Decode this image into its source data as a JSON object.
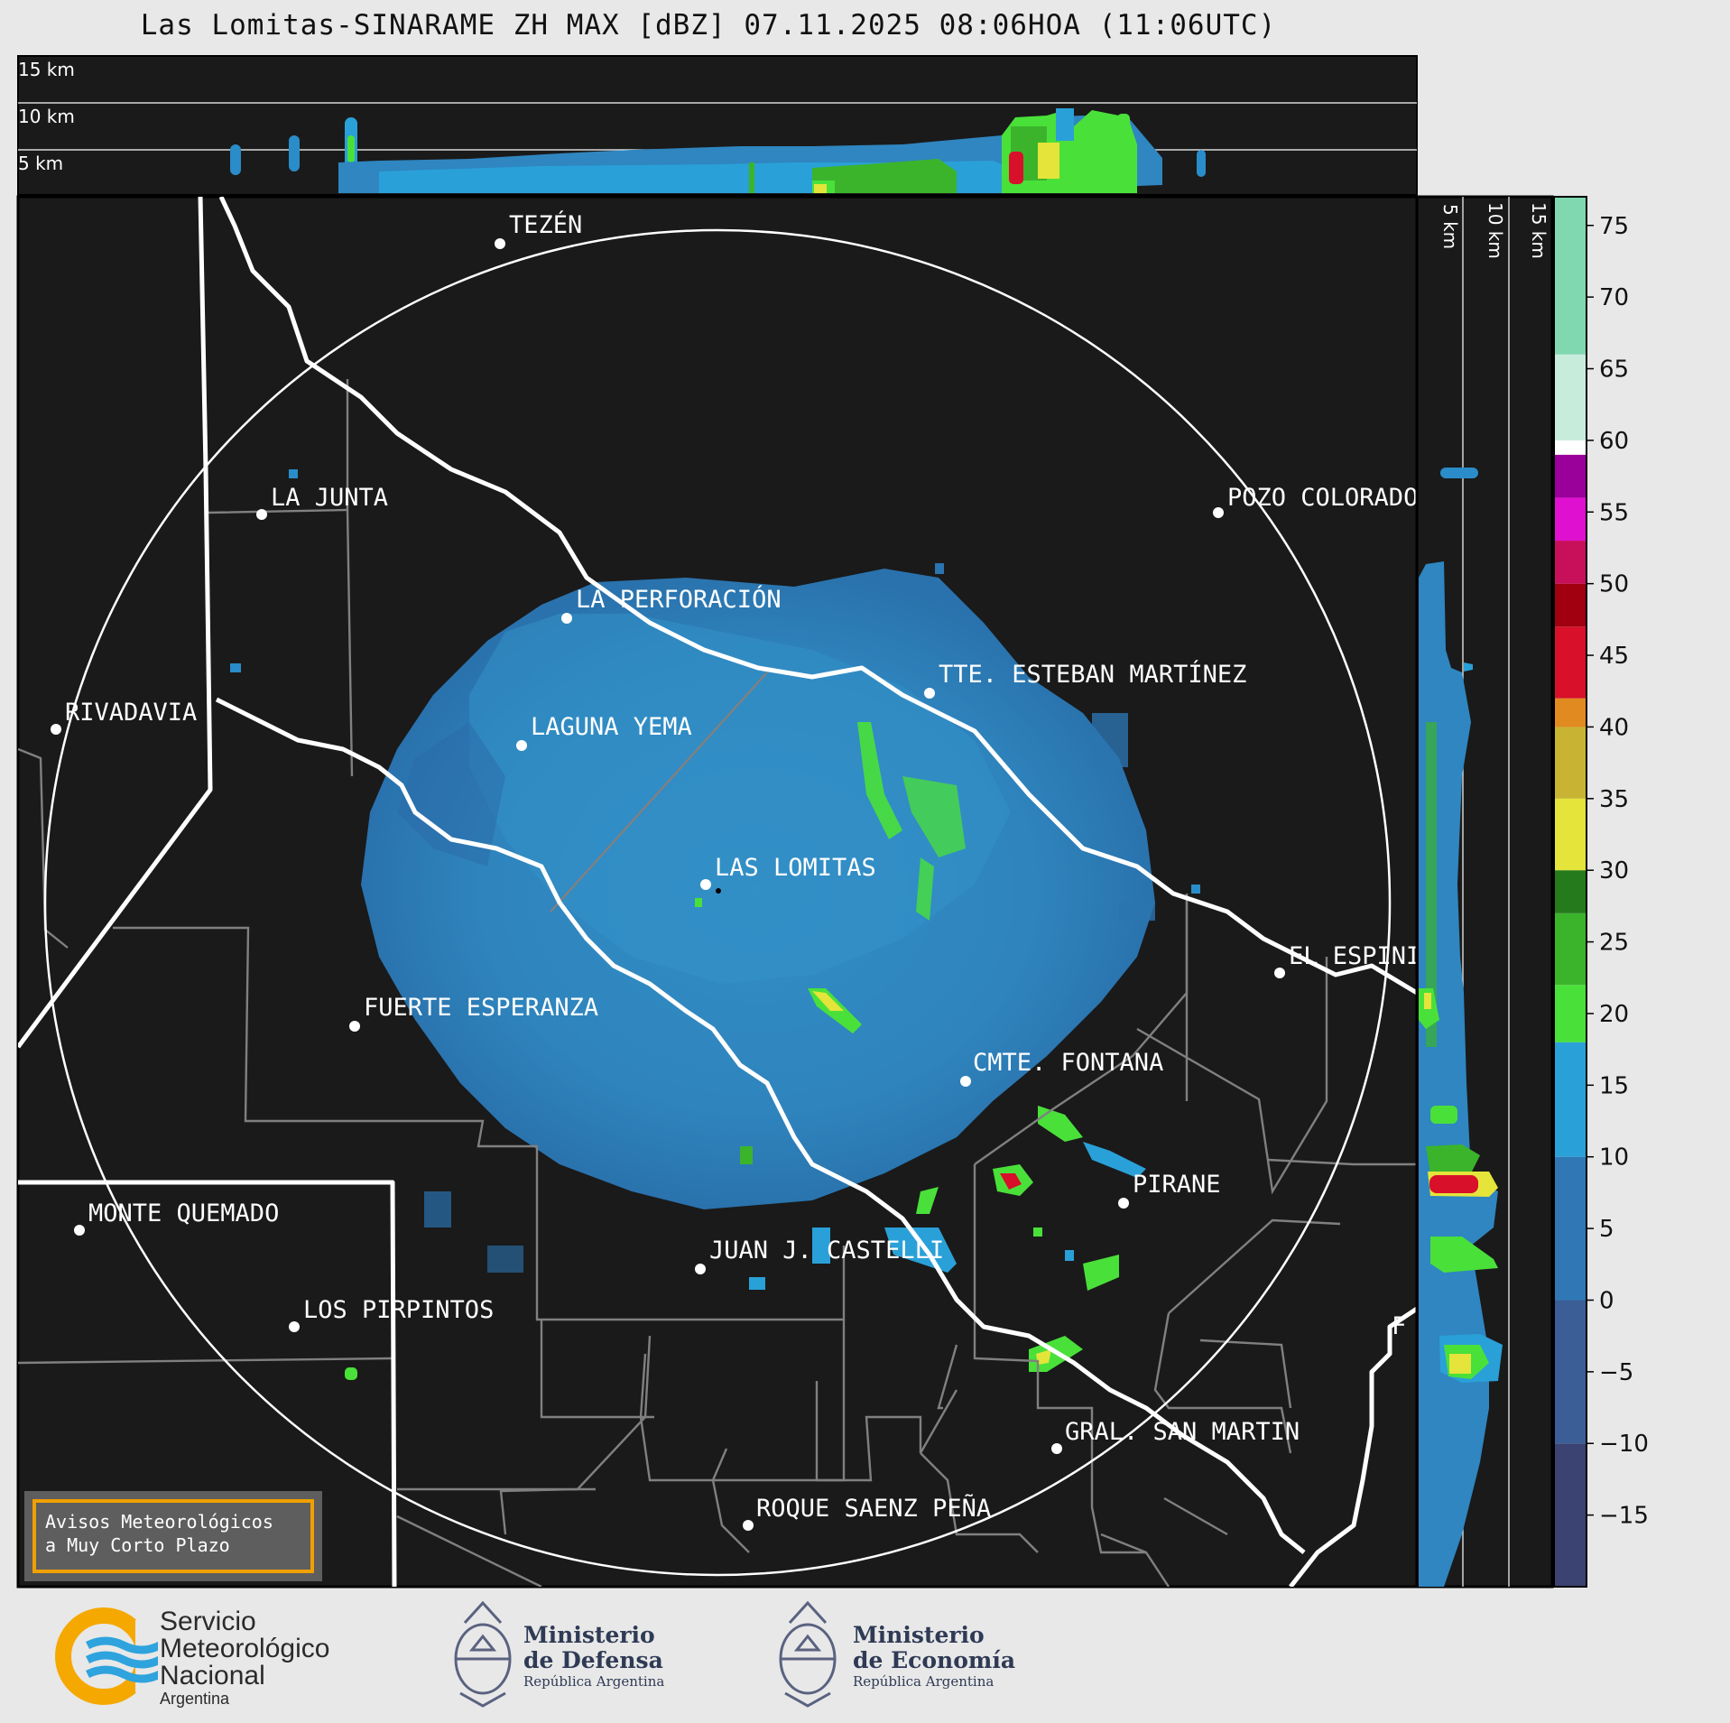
{
  "title": "Las Lomitas-SINARAME ZH MAX [dBZ] 07.11.2025 08:06HOA (11:06UTC)",
  "top_panel": {
    "altitude_labels": [
      "15 km",
      "10 km",
      "5 km"
    ]
  },
  "side_panel": {
    "altitude_labels": [
      "5 km",
      "10 km",
      "15 km"
    ]
  },
  "map": {
    "background_color": "#1a1a1a",
    "echo_color": "#2f86c0",
    "cities": [
      {
        "name": "TEZÉN"
      },
      {
        "name": "LA JUNTA"
      },
      {
        "name": "POZO COLORADO"
      },
      {
        "name": "LA PERFORACIÓN"
      },
      {
        "name": "RIVADAVIA"
      },
      {
        "name": "TTE. ESTEBAN MARTÍNEZ"
      },
      {
        "name": "LAGUNA YEMA"
      },
      {
        "name": "LAS LOMITAS"
      },
      {
        "name": "EL ESPINILLO"
      },
      {
        "name": "FUERTE ESPERANZA"
      },
      {
        "name": "CMTE. FONTANA"
      },
      {
        "name": "PIRANE"
      },
      {
        "name": "MONTE QUEMADO"
      },
      {
        "name": "JUAN J. CASTELLI"
      },
      {
        "name": "LOS PIRPINTOS"
      },
      {
        "name": "F"
      },
      {
        "name": "GRAL. SAN MARTIN"
      },
      {
        "name": "ROQUE SAENZ PEÑA"
      }
    ]
  },
  "colorbar": {
    "tick_labels": [
      "75",
      "70",
      "65",
      "60",
      "55",
      "50",
      "45",
      "40",
      "35",
      "30",
      "25",
      "20",
      "15",
      "10",
      "5",
      "0",
      "−5",
      "−10",
      "−15"
    ],
    "ticks": [
      75,
      70,
      65,
      60,
      55,
      50,
      45,
      40,
      35,
      30,
      25,
      20,
      15,
      10,
      5,
      0,
      -5,
      -10,
      -15
    ],
    "range": [
      -20,
      77
    ],
    "color_stops": [
      {
        "from": -20,
        "to": -10,
        "color": "#3b4372"
      },
      {
        "from": -10,
        "to": 0,
        "color": "#3b5e96"
      },
      {
        "from": 0,
        "to": 10,
        "color": "#2f78b5"
      },
      {
        "from": 10,
        "to": 18,
        "color": "#2aa0d8"
      },
      {
        "from": 18,
        "to": 22,
        "color": "#4ae03a"
      },
      {
        "from": 22,
        "to": 27,
        "color": "#3bb42c"
      },
      {
        "from": 27,
        "to": 30,
        "color": "#257a1c"
      },
      {
        "from": 30,
        "to": 35,
        "color": "#e4e43a"
      },
      {
        "from": 35,
        "to": 40,
        "color": "#c8b432"
      },
      {
        "from": 40,
        "to": 42,
        "color": "#e08a20"
      },
      {
        "from": 42,
        "to": 47,
        "color": "#d8102a"
      },
      {
        "from": 47,
        "to": 50,
        "color": "#a00010"
      },
      {
        "from": 50,
        "to": 53,
        "color": "#c8105a"
      },
      {
        "from": 53,
        "to": 56,
        "color": "#e010d0"
      },
      {
        "from": 56,
        "to": 59,
        "color": "#9a009a"
      },
      {
        "from": 59,
        "to": 60,
        "color": "#ffffff"
      },
      {
        "from": 60,
        "to": 66,
        "color": "#c8ecdc"
      },
      {
        "from": 66,
        "to": 77,
        "color": "#80d8b0"
      }
    ]
  },
  "avisos": {
    "line1": "Avisos Meteorológicos",
    "line2": "a Muy Corto Plazo"
  },
  "footer": {
    "smn": {
      "line1": "Servicio",
      "line2": "Meteorológico",
      "line3": "Nacional",
      "sub": "Argentina"
    },
    "defensa": {
      "line1": "Ministerio",
      "line2": "de Defensa",
      "sub": "República Argentina"
    },
    "economia": {
      "line1": "Ministerio",
      "line2": "de Economía",
      "sub": "República Argentina"
    }
  }
}
